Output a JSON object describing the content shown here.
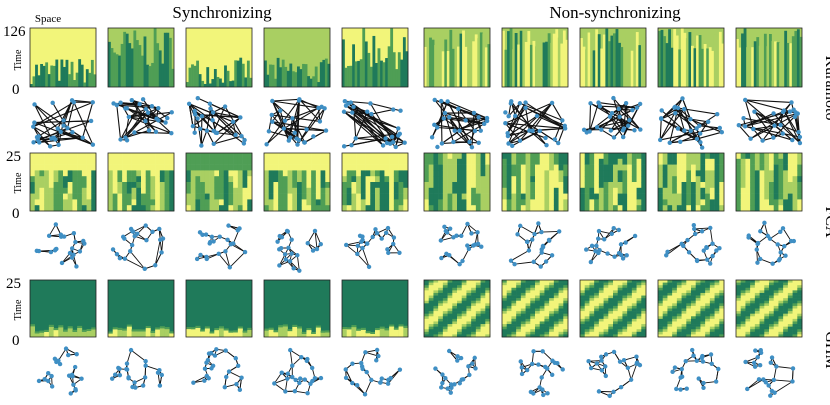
{
  "header": {
    "sync_label": "Synchronizing",
    "nonsync_label": "Non-synchronizing",
    "space_label": "Space"
  },
  "axis": {
    "time_label": "Time"
  },
  "rows": [
    {
      "model": "Kuramoto",
      "ymax": "126",
      "ymin": "0"
    },
    {
      "model": "FCA",
      "ymax": "25",
      "ymin": "0"
    },
    {
      "model": "GHM",
      "ymax": "25",
      "ymin": "0"
    }
  ],
  "colors": {
    "dark_green": "#1f7a5a",
    "mid_green": "#4f9e55",
    "light_green": "#a9cf62",
    "yellow": "#f2f57a",
    "node": "#3f8fc4",
    "edge": "#111111"
  }
}
